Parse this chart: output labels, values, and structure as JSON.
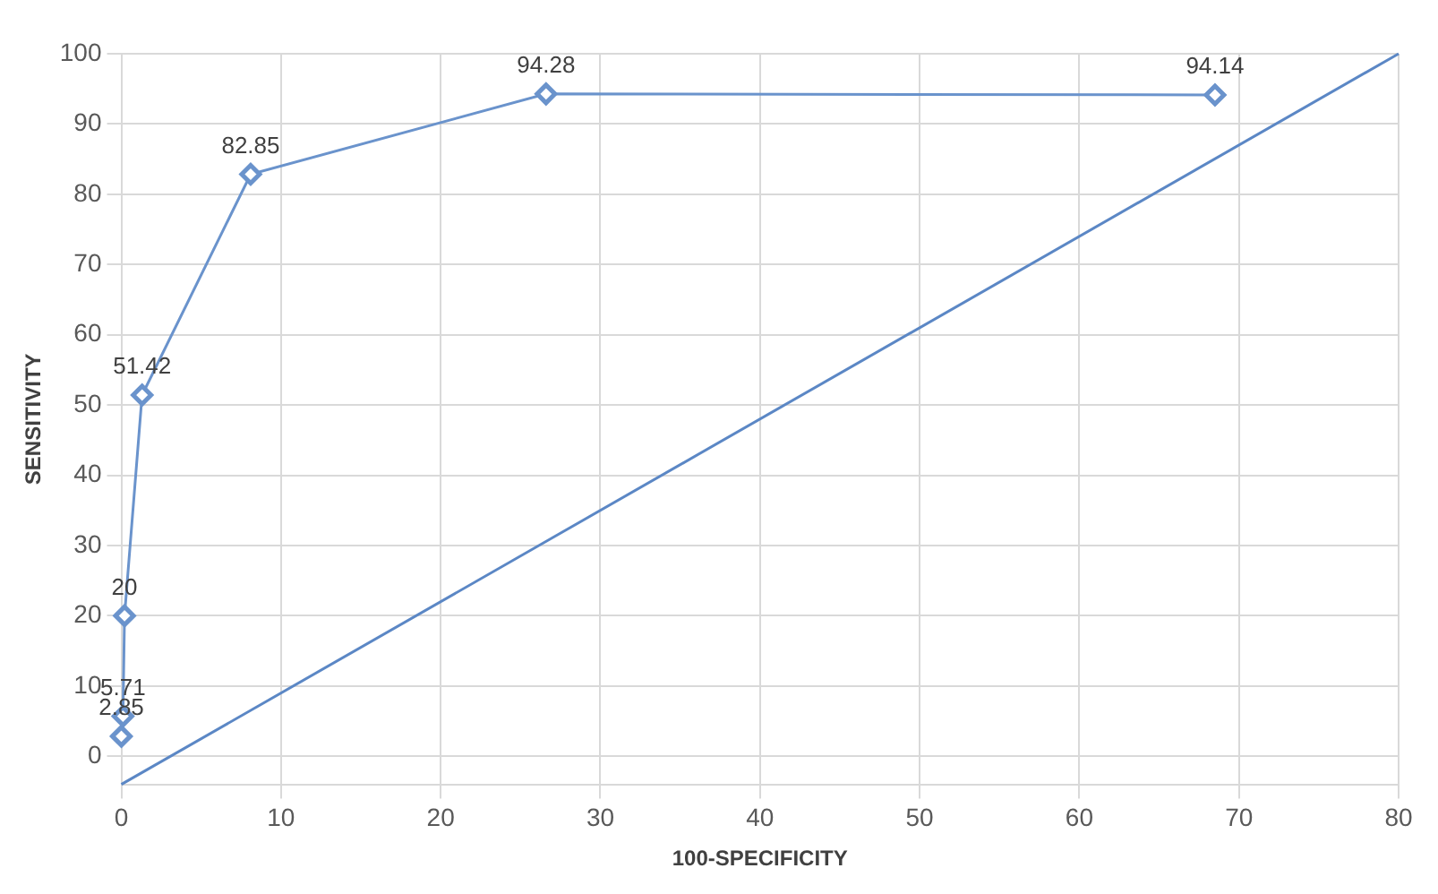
{
  "chart_data": {
    "type": "line",
    "xlabel": "100-SPECIFICITY",
    "ylabel": "SENSITIVITY",
    "xlim": [
      0,
      80
    ],
    "xticks": [
      0,
      10,
      20,
      30,
      40,
      50,
      60,
      70,
      80
    ],
    "ylim": [
      -4,
      100
    ],
    "yticks": [
      0,
      10,
      20,
      30,
      40,
      50,
      60,
      70,
      80,
      90,
      100
    ],
    "grid": true,
    "legend": false,
    "series": [
      {
        "color": "#6a93cc",
        "marker": "diamond",
        "x": [
          0,
          0.1,
          0.2,
          1.3,
          8.1,
          26.6,
          68.5
        ],
        "values": [
          2.85,
          5.71,
          20,
          51.42,
          82.85,
          94.28,
          94.14
        ],
        "value_labels": [
          "2.85",
          "5.71",
          "20",
          "51.42",
          "82.85",
          "94.28",
          "94.14"
        ]
      },
      {
        "color": "#5b87c5",
        "marker": "none",
        "x": [
          0,
          80
        ],
        "values": [
          -4,
          100
        ]
      }
    ]
  }
}
